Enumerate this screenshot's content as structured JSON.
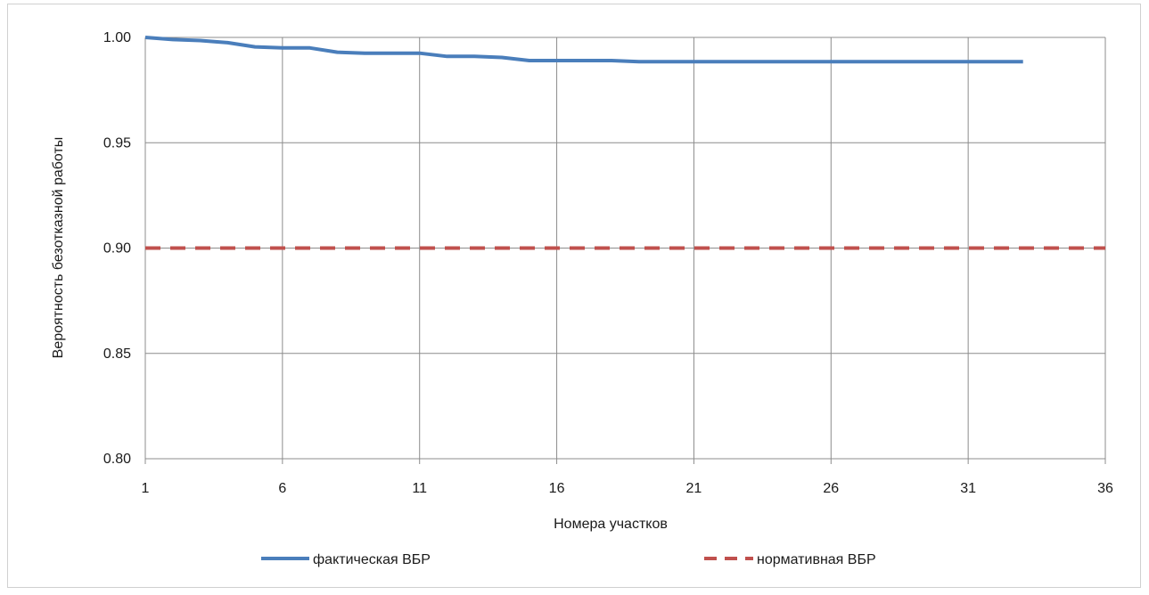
{
  "chart_data": {
    "type": "line",
    "title": "",
    "xlabel": "Номера участков",
    "ylabel": "Вероятность безотказной работы",
    "xlim": [
      1,
      36
    ],
    "ylim": [
      0.8,
      1.0
    ],
    "x_ticks": [
      1,
      6,
      11,
      16,
      21,
      26,
      31,
      36
    ],
    "y_ticks": [
      0.8,
      0.85,
      0.9,
      0.95,
      1.0
    ],
    "y_tick_labels": [
      "0.80",
      "0.85",
      "0.90",
      "0.95",
      "1.00"
    ],
    "grid": true,
    "legend_position": "bottom",
    "series": [
      {
        "name": "фактическая ВБР",
        "color": "#4a7ebb",
        "style": "solid",
        "x": [
          1,
          2,
          3,
          4,
          5,
          6,
          7,
          8,
          9,
          10,
          11,
          12,
          13,
          14,
          15,
          16,
          17,
          18,
          19,
          20,
          21,
          22,
          23,
          24,
          25,
          26,
          27,
          28,
          29,
          30,
          31,
          32,
          33
        ],
        "values": [
          1.0,
          0.999,
          0.9985,
          0.9975,
          0.9955,
          0.995,
          0.995,
          0.993,
          0.9925,
          0.9925,
          0.9925,
          0.991,
          0.991,
          0.9905,
          0.989,
          0.989,
          0.989,
          0.989,
          0.9885,
          0.9885,
          0.9885,
          0.9885,
          0.9885,
          0.9885,
          0.9885,
          0.9885,
          0.9885,
          0.9885,
          0.9885,
          0.9885,
          0.9885,
          0.9885,
          0.9885
        ]
      },
      {
        "name": "нормативная ВБР",
        "color": "#c0504d",
        "style": "dashed",
        "x": [
          1,
          36
        ],
        "values": [
          0.9,
          0.9
        ]
      }
    ]
  }
}
